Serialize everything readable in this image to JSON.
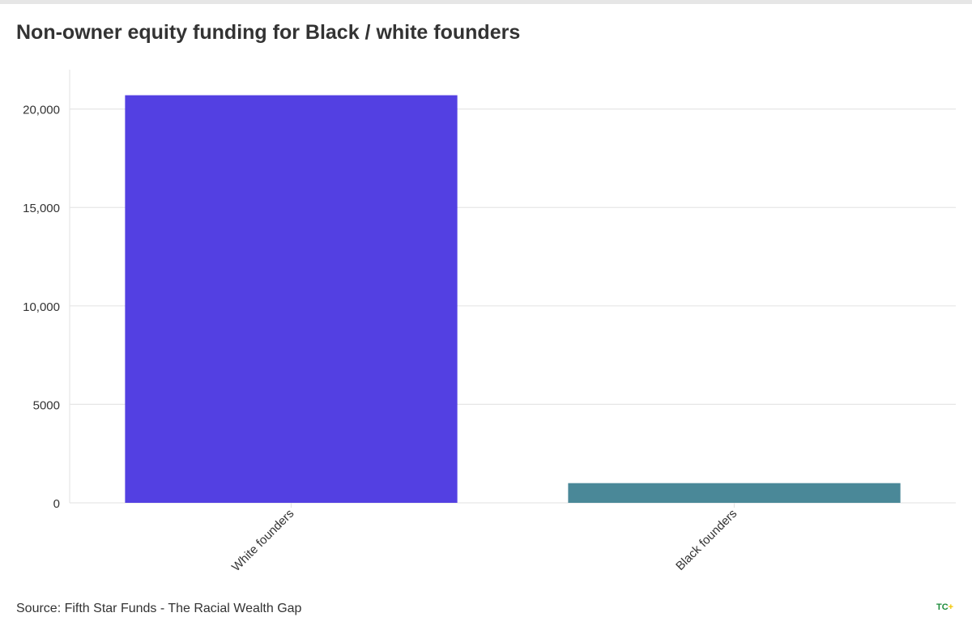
{
  "title": "Non-owner equity funding for Black / white founders",
  "source": "Source: Fifth Star Funds - The Racial Wealth Gap",
  "logo": {
    "text": "TC",
    "plus": "+"
  },
  "colors": {
    "accent_bar": "#5340e2",
    "secondary_bar": "#4a8898",
    "grid": "#e6e6e6",
    "text": "#333333"
  },
  "chart_data": {
    "type": "bar",
    "title": "Non-owner equity funding for Black / white founders",
    "categories": [
      "White founders",
      "Black founders"
    ],
    "values": [
      20700,
      1000
    ],
    "bar_colors": [
      "#5340e2",
      "#4a8898"
    ],
    "ylim": [
      0,
      22000
    ],
    "yticks": [
      0,
      5000,
      10000,
      15000,
      20000
    ],
    "ytick_labels": [
      "0",
      "5000",
      "10,000",
      "15,000",
      "20,000"
    ],
    "xlabel": "",
    "ylabel": "",
    "grid": true,
    "legend": "none"
  }
}
